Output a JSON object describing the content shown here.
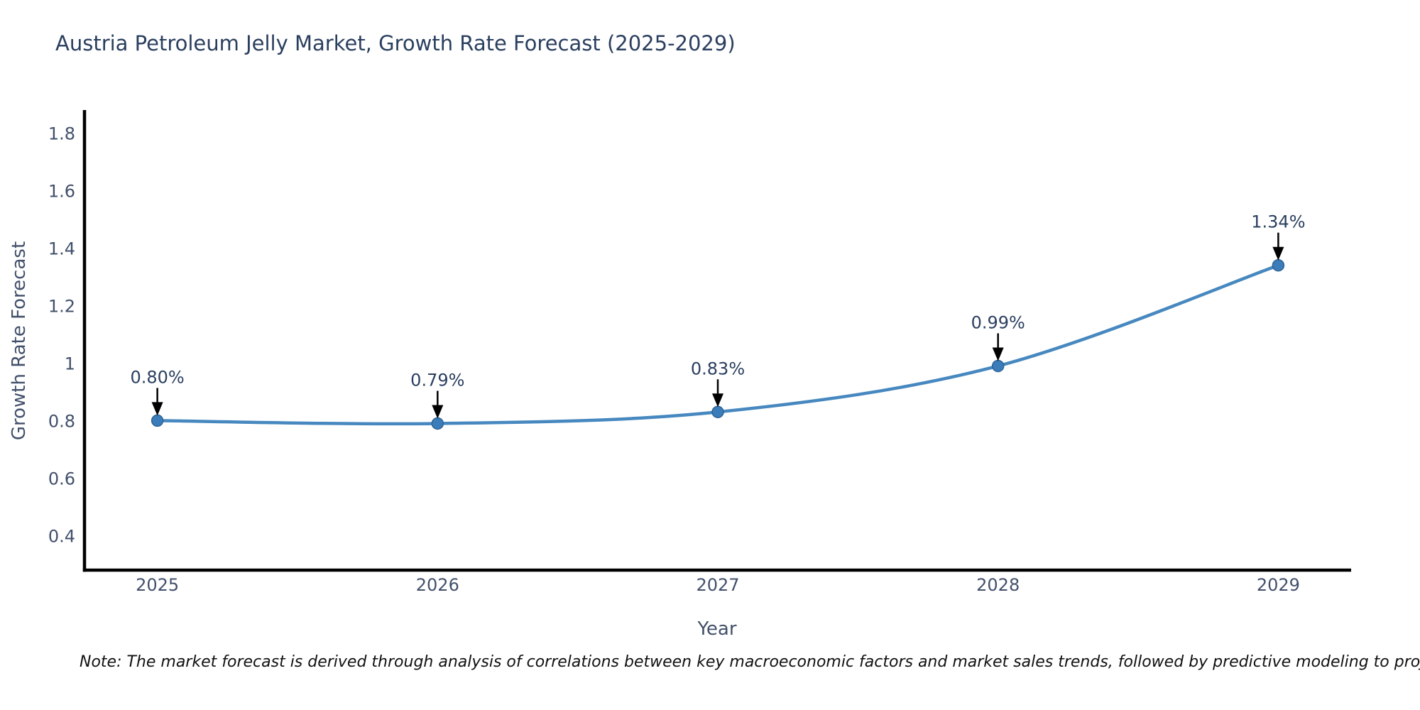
{
  "chart_data": {
    "type": "line",
    "title": "Austria Petroleum Jelly Market, Growth Rate Forecast (2025-2029)",
    "xlabel": "Year",
    "ylabel": "Growth Rate Forecast",
    "x": [
      2025,
      2026,
      2027,
      2028,
      2029
    ],
    "x_labels": [
      "2025",
      "2026",
      "2027",
      "2028",
      "2029"
    ],
    "series": [
      {
        "name": "Growth Rate Forecast",
        "values": [
          0.8,
          0.79,
          0.83,
          0.99,
          1.34
        ],
        "point_labels": [
          "0.80%",
          "0.79%",
          "0.83%",
          "0.99%",
          "1.34%"
        ]
      }
    ],
    "yticks": [
      0.4,
      0.6,
      0.8,
      1,
      1.2,
      1.4,
      1.6,
      1.8
    ],
    "ytick_labels": [
      "0.4",
      "0.6",
      "0.8",
      "1",
      "1.2",
      "1.4",
      "1.6",
      "1.8"
    ],
    "xlim": [
      2024.74,
      2029.26
    ],
    "ylim": [
      0.28,
      1.88
    ],
    "line_shape": "spline",
    "grid": false,
    "legend_position": "none",
    "annotations_have_arrows": true,
    "colors": {
      "line": "#4688bf",
      "marker": "#3b7cba",
      "marker_edge": "#2e6396",
      "axis_line": "#000000",
      "title_text": "#2a3f5f",
      "tick_text": "#42506b",
      "annotation_text": "#2a3f5f",
      "annotation_arrow": "#000000"
    }
  },
  "note": "Note: The market forecast is derived through analysis of correlations between key macroeconomic factors and market sales trends, followed by predictive modeling to project future sales volumes."
}
